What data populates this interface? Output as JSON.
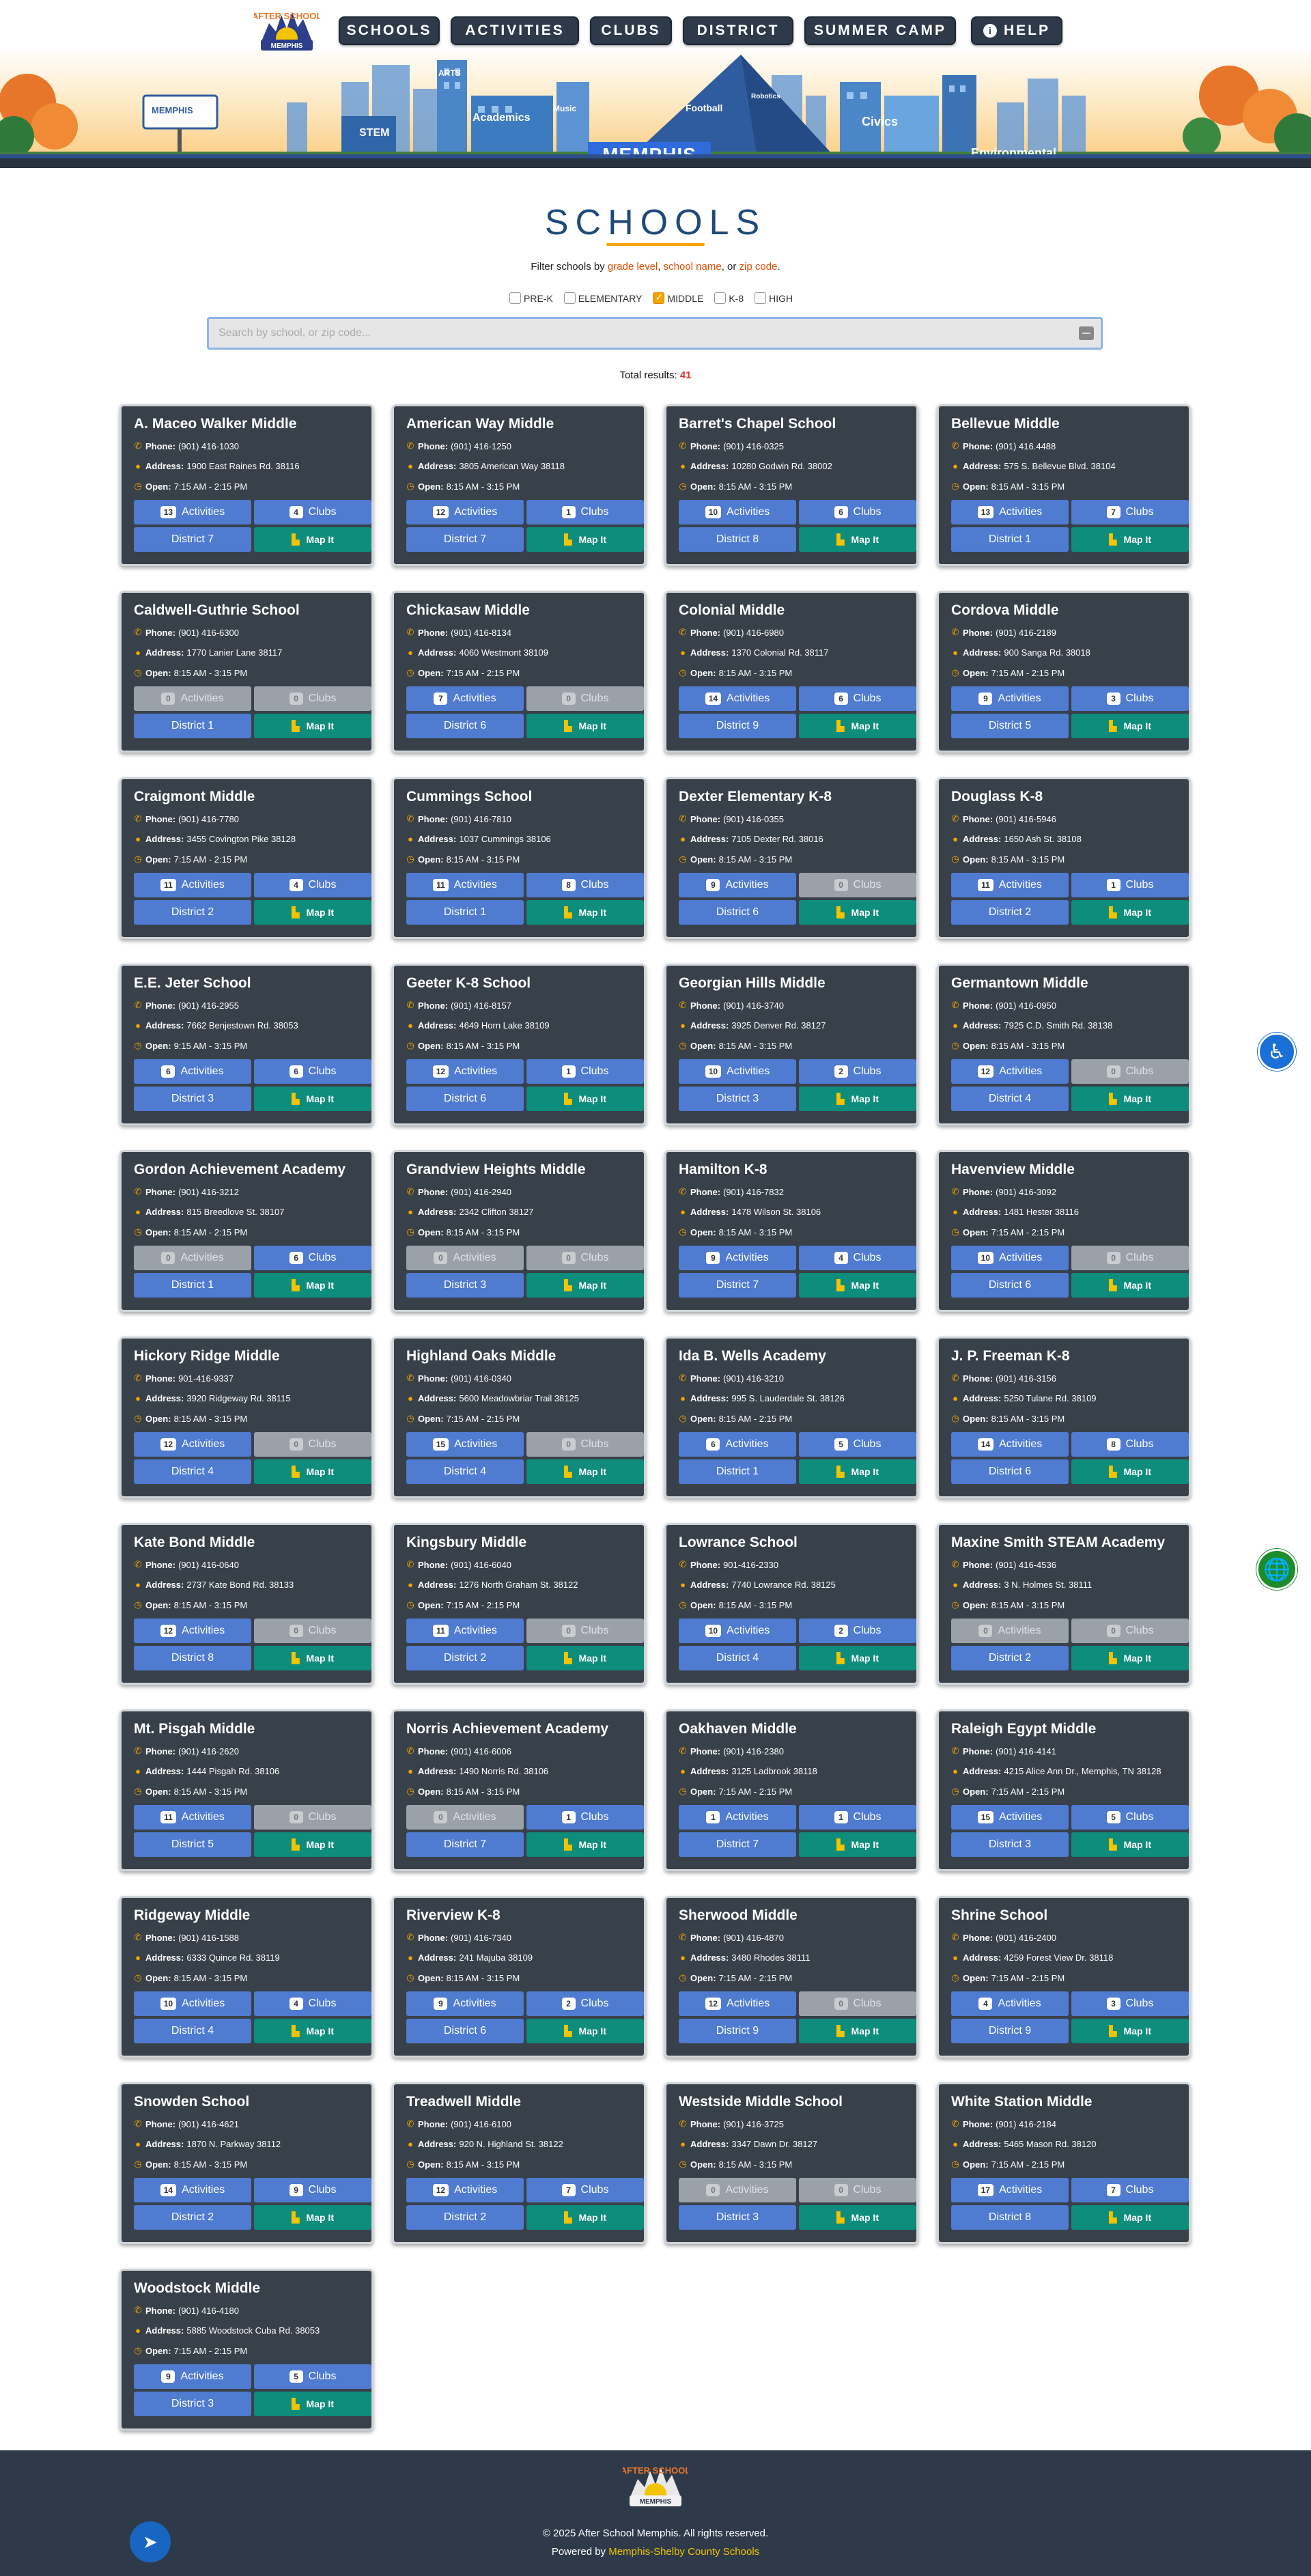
{
  "header": {
    "logo_text_top": "AFTER SCHOOL",
    "logo_text_bottom": "MEMPHIS",
    "nav": [
      {
        "label": "SCHOOLS"
      },
      {
        "label": "ACTIVITIES"
      },
      {
        "label": "CLUBS"
      },
      {
        "label": "DISTRICT"
      },
      {
        "label": "SUMMER CAMP"
      },
      {
        "label": "HELP",
        "icon": "info-icon"
      }
    ],
    "banner": {
      "building_labels": [
        "STEM",
        "ARTS",
        "Academics",
        "Music",
        "Football",
        "Robotics",
        "Civics",
        "Environmental"
      ],
      "city_sign": "MEMPHIS",
      "billboard": "MEMPHIS"
    }
  },
  "page": {
    "title": "SCHOOLS",
    "filter_intro": "Filter schools by",
    "filter_terms": [
      "grade level",
      "school name",
      "zip code"
    ],
    "filter_sep1": ",",
    "filter_sep2": ", or",
    "filter_end": ".",
    "levels": [
      {
        "label": "PRE-K",
        "checked": false
      },
      {
        "label": "ELEMENTARY",
        "checked": false
      },
      {
        "label": "MIDDLE",
        "checked": true
      },
      {
        "label": "K-8",
        "checked": false
      },
      {
        "label": "HIGH",
        "checked": false
      }
    ],
    "search_placeholder": "Search by school, or zip code...",
    "total_label": "Total results:",
    "total_count": "41"
  },
  "labels": {
    "phone": "Phone:",
    "address": "Address:",
    "open": "Open:",
    "activities": "Activities",
    "clubs": "Clubs",
    "map": "Map It"
  },
  "schools": [
    {
      "name": "A. Maceo Walker Middle",
      "phone": "(901) 416-1030",
      "address": "1900 East Raines Rd. 38116",
      "open": "7:15 AM - 2:15 PM",
      "activities": "13",
      "clubs": "4",
      "district": "District 7"
    },
    {
      "name": "American Way Middle",
      "phone": "(901) 416-1250",
      "address": "3805 American Way 38118",
      "open": "8:15 AM - 3:15 PM",
      "activities": "12",
      "clubs": "1",
      "district": "District 7"
    },
    {
      "name": "Barret's Chapel School",
      "phone": "(901) 416-0325",
      "address": "10280 Godwin Rd. 38002",
      "open": "8:15 AM - 3:15 PM",
      "activities": "10",
      "clubs": "6",
      "district": "District 8"
    },
    {
      "name": "Bellevue Middle",
      "phone": "(901) 416.4488",
      "address": "575 S. Bellevue Blvd. 38104",
      "open": "8:15 AM - 3:15 PM",
      "activities": "13",
      "clubs": "7",
      "district": "District 1"
    },
    {
      "name": "Caldwell-Guthrie School",
      "phone": "(901) 416-6300",
      "address": "1770 Lanier Lane 38117",
      "open": "8:15 AM - 3:15 PM",
      "activities": "0",
      "clubs": "0",
      "district": "District 1"
    },
    {
      "name": "Chickasaw Middle",
      "phone": "(901) 416-8134",
      "address": "4060 Westmont 38109",
      "open": "7:15 AM - 2:15 PM",
      "activities": "7",
      "clubs": "0",
      "district": "District 6"
    },
    {
      "name": "Colonial Middle",
      "phone": "(901) 416-6980",
      "address": "1370 Colonial Rd. 38117",
      "open": "8:15 AM - 3:15 PM",
      "activities": "14",
      "clubs": "6",
      "district": "District 9"
    },
    {
      "name": "Cordova Middle",
      "phone": "(901) 416-2189",
      "address": "900 Sanga Rd. 38018",
      "open": "7:15 AM - 2:15 PM",
      "activities": "9",
      "clubs": "3",
      "district": "District 5"
    },
    {
      "name": "Craigmont Middle",
      "phone": "(901) 416-7780",
      "address": "3455 Covington Pike 38128",
      "open": "7:15 AM - 2:15 PM",
      "activities": "11",
      "clubs": "4",
      "district": "District 2"
    },
    {
      "name": "Cummings School",
      "phone": "(901) 416-7810",
      "address": "1037 Cummings 38106",
      "open": "8:15 AM - 3:15 PM",
      "activities": "11",
      "clubs": "8",
      "district": "District 1"
    },
    {
      "name": "Dexter Elementary K-8",
      "phone": "(901) 416-0355",
      "address": "7105 Dexter Rd. 38016",
      "open": "8:15 AM - 3:15 PM",
      "activities": "9",
      "clubs": "0",
      "district": "District 6"
    },
    {
      "name": "Douglass K-8",
      "phone": "(901) 416-5946",
      "address": "1650 Ash St. 38108",
      "open": "8:15 AM - 3:15 PM",
      "activities": "11",
      "clubs": "1",
      "district": "District 2"
    },
    {
      "name": "E.E. Jeter School",
      "phone": "(901) 416-2955",
      "address": "7662 Benjestown Rd. 38053",
      "open": "9:15 AM - 3:15 PM",
      "activities": "6",
      "clubs": "6",
      "district": "District 3"
    },
    {
      "name": "Geeter K-8 School",
      "phone": "(901) 416-8157",
      "address": "4649 Horn Lake 38109",
      "open": "8:15 AM - 3:15 PM",
      "activities": "12",
      "clubs": "1",
      "district": "District 6"
    },
    {
      "name": "Georgian Hills Middle",
      "phone": "(901) 416-3740",
      "address": "3925 Denver Rd. 38127",
      "open": "8:15 AM - 3:15 PM",
      "activities": "10",
      "clubs": "2",
      "district": "District 3"
    },
    {
      "name": "Germantown Middle",
      "phone": "(901) 416-0950",
      "address": "7925 C.D. Smith Rd. 38138",
      "open": "8:15 AM - 3:15 PM",
      "activities": "12",
      "clubs": "0",
      "district": "District 4"
    },
    {
      "name": "Gordon Achievement Academy",
      "phone": "(901) 416-3212",
      "address": "815 Breedlove St. 38107",
      "open": "8:15 AM - 2:15 PM",
      "activities": "0",
      "clubs": "6",
      "district": "District 1"
    },
    {
      "name": "Grandview Heights Middle",
      "phone": "(901) 416-2940",
      "address": "2342 Clifton 38127",
      "open": "8:15 AM - 3:15 PM",
      "activities": "0",
      "clubs": "0",
      "district": "District 3"
    },
    {
      "name": "Hamilton K-8",
      "phone": "(901) 416-7832",
      "address": "1478 Wilson St. 38106",
      "open": "8:15 AM - 3:15 PM",
      "activities": "9",
      "clubs": "4",
      "district": "District 7"
    },
    {
      "name": "Havenview Middle",
      "phone": "(901) 416-3092",
      "address": "1481 Hester 38116",
      "open": "7:15 AM - 2:15 PM",
      "activities": "10",
      "clubs": "0",
      "district": "District 6"
    },
    {
      "name": "Hickory Ridge Middle",
      "phone": "901-416-9337",
      "address": "3920 Ridgeway Rd. 38115",
      "open": "8:15 AM - 3:15 PM",
      "activities": "12",
      "clubs": "0",
      "district": "District 4"
    },
    {
      "name": "Highland Oaks Middle",
      "phone": "(901) 416-0340",
      "address": "5600 Meadowbriar Trail 38125",
      "open": "7:15 AM - 2:15 PM",
      "activities": "15",
      "clubs": "0",
      "district": "District 4"
    },
    {
      "name": "Ida B. Wells Academy",
      "phone": "(901) 416-3210",
      "address": "995 S. Lauderdale St. 38126",
      "open": "8:15 AM - 2:15 PM",
      "activities": "6",
      "clubs": "5",
      "district": "District 1"
    },
    {
      "name": "J. P. Freeman K-8",
      "phone": "(901) 416-3156",
      "address": "5250 Tulane Rd. 38109",
      "open": "8:15 AM - 3:15 PM",
      "activities": "14",
      "clubs": "8",
      "district": "District 6"
    },
    {
      "name": "Kate Bond Middle",
      "phone": "(901) 416-0640",
      "address": "2737 Kate Bond Rd. 38133",
      "open": "8:15 AM - 3:15 PM",
      "activities": "12",
      "clubs": "0",
      "district": "District 8"
    },
    {
      "name": "Kingsbury Middle",
      "phone": "(901) 416-6040",
      "address": "1276 North Graham St. 38122",
      "open": "7:15 AM - 2:15 PM",
      "activities": "11",
      "clubs": "0",
      "district": "District 2"
    },
    {
      "name": "Lowrance School",
      "phone": "901-416-2330",
      "address": "7740 Lowrance Rd. 38125",
      "open": "8:15 AM - 3:15 PM",
      "activities": "10",
      "clubs": "2",
      "district": "District 4"
    },
    {
      "name": "Maxine Smith STEAM Academy",
      "phone": "(901) 416-4536",
      "address": "3 N. Holmes St. 38111",
      "open": "8:15 AM - 3:15 PM",
      "activities": "0",
      "clubs": "0",
      "district": "District 2"
    },
    {
      "name": "Mt. Pisgah Middle",
      "phone": "(901) 416-2620",
      "address": "1444 Pisgah Rd. 38106",
      "open": "8:15 AM - 3:15 PM",
      "activities": "11",
      "clubs": "0",
      "district": "District 5"
    },
    {
      "name": "Norris Achievement Academy",
      "phone": "(901) 416-6006",
      "address": "1490 Norris Rd. 38106",
      "open": "8:15 AM - 3:15 PM",
      "activities": "0",
      "clubs": "1",
      "district": "District 7"
    },
    {
      "name": "Oakhaven Middle",
      "phone": "(901) 416-2380",
      "address": "3125 Ladbrook 38118",
      "open": "7:15 AM - 2:15 PM",
      "activities": "1",
      "clubs": "1",
      "district": "District 7"
    },
    {
      "name": "Raleigh Egypt Middle",
      "phone": "(901) 416-4141",
      "address": "4215 Alice Ann Dr., Memphis, TN 38128",
      "open": "7:15 AM - 2:15 PM",
      "activities": "15",
      "clubs": "5",
      "district": "District 3"
    },
    {
      "name": "Ridgeway Middle",
      "phone": "(901) 416-1588",
      "address": "6333 Quince Rd. 38119",
      "open": "8:15 AM - 3:15 PM",
      "activities": "10",
      "clubs": "4",
      "district": "District 4"
    },
    {
      "name": "Riverview K-8",
      "phone": "(901) 416-7340",
      "address": "241 Majuba 38109",
      "open": "8:15 AM - 3:15 PM",
      "activities": "9",
      "clubs": "2",
      "district": "District 6"
    },
    {
      "name": "Sherwood Middle",
      "phone": "(901) 416-4870",
      "address": "3480 Rhodes 38111",
      "open": "7:15 AM - 2:15 PM",
      "activities": "12",
      "clubs": "0",
      "district": "District 9"
    },
    {
      "name": "Shrine School",
      "phone": "(901) 416-2400",
      "address": "4259 Forest View Dr. 38118",
      "open": "7:15 AM - 2:15 PM",
      "activities": "4",
      "clubs": "3",
      "district": "District 9"
    },
    {
      "name": "Snowden School",
      "phone": "(901) 416-4621",
      "address": "1870 N. Parkway 38112",
      "open": "8:15 AM - 3:15 PM",
      "activities": "14",
      "clubs": "9",
      "district": "District 2"
    },
    {
      "name": "Treadwell Middle",
      "phone": "(901) 416-6100",
      "address": "920 N. Highland St. 38122",
      "open": "8:15 AM - 3:15 PM",
      "activities": "12",
      "clubs": "7",
      "district": "District 2"
    },
    {
      "name": "Westside Middle School",
      "phone": "(901) 416-3725",
      "address": "3347 Dawn Dr. 38127",
      "open": "8:15 AM - 3:15 PM",
      "activities": "0",
      "clubs": "0",
      "district": "District 3"
    },
    {
      "name": "White Station Middle",
      "phone": "(901) 416-2184",
      "address": "5465 Mason Rd. 38120",
      "open": "7:15 AM - 2:15 PM",
      "activities": "17",
      "clubs": "7",
      "district": "District 8"
    },
    {
      "name": "Woodstock Middle",
      "phone": "(901) 416-4180",
      "address": "5885 Woodstock Cuba Rd. 38053",
      "open": "7:15 AM - 2:15 PM",
      "activities": "9",
      "clubs": "5",
      "district": "District 3"
    }
  ],
  "footer": {
    "logo_text_top": "AFTER SCHOOL",
    "logo_text_bottom": "MEMPHIS",
    "copyright": "© 2025 After School Memphis. All rights reserved.",
    "powered_prefix": "Powered by",
    "powered_link": "Memphis-Shelby County Schools"
  },
  "colors": {
    "accent": "#f4a300",
    "primary_button": "#4f7bd1",
    "map_button": "#0e8c7c",
    "card_bg": "#384049",
    "nav_bg": "#2e3a4a",
    "title": "#1e4a7a"
  },
  "floating": {
    "accessibility_icon": "accessibility-icon",
    "translate_icon": "globe-icon",
    "share_icon": "telegram-icon"
  }
}
